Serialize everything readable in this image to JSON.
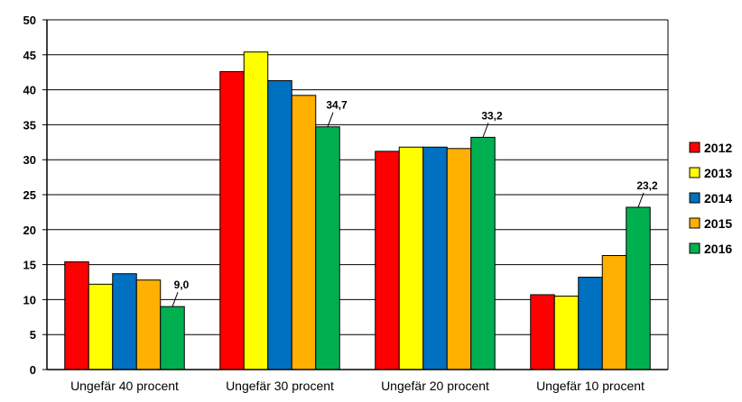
{
  "chart_data": {
    "type": "bar",
    "title": "",
    "xlabel": "",
    "ylabel": "",
    "categories": [
      "Ungefär 40 procent",
      "Ungefär 30 procent",
      "Ungefär 20 procent",
      "Ungefär 10 procent"
    ],
    "series": [
      {
        "name": "2012",
        "color": "#ff0000",
        "values": [
          15.4,
          42.6,
          31.2,
          10.7
        ]
      },
      {
        "name": "2013",
        "color": "#ffff00",
        "values": [
          12.2,
          45.4,
          31.8,
          10.5
        ]
      },
      {
        "name": "2014",
        "color": "#0070c0",
        "values": [
          13.7,
          41.3,
          31.8,
          13.2
        ]
      },
      {
        "name": "2015",
        "color": "#ffb000",
        "values": [
          12.8,
          39.2,
          31.6,
          16.3
        ]
      },
      {
        "name": "2016",
        "color": "#00b050",
        "values": [
          9.0,
          34.7,
          33.2,
          23.2
        ]
      }
    ],
    "data_labels": [
      {
        "series": 4,
        "category": 0,
        "text": "9,0"
      },
      {
        "series": 4,
        "category": 1,
        "text": "34,7"
      },
      {
        "series": 4,
        "category": 2,
        "text": "33,2"
      },
      {
        "series": 4,
        "category": 3,
        "text": "23,2"
      }
    ],
    "ylim": [
      0,
      50
    ],
    "yticks": [
      "0",
      "5",
      "10",
      "15",
      "20",
      "25",
      "30",
      "35",
      "40",
      "45",
      "50"
    ],
    "grid": true,
    "legend": "right"
  }
}
